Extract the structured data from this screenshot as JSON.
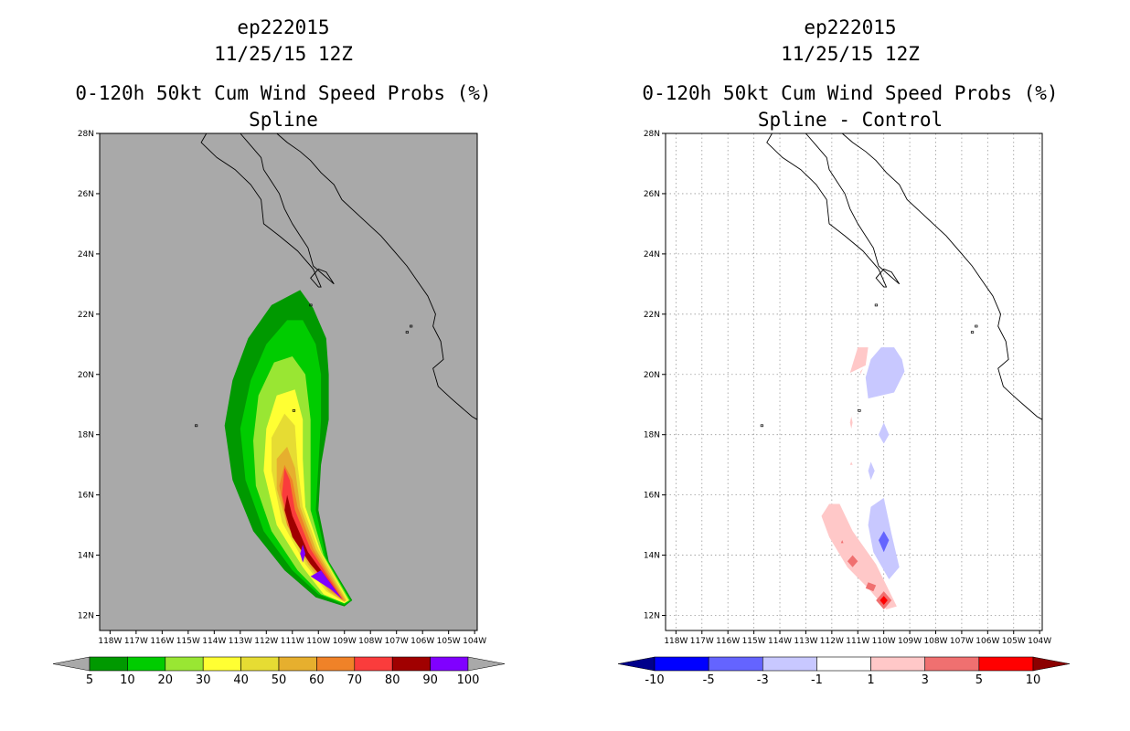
{
  "panels": [
    {
      "id": "left",
      "title_line1": "ep222015",
      "title_line2": "11/25/15 12Z",
      "title_line3": "0-120h 50kt Cum Wind Speed Probs (%)",
      "title_line4": "Spline",
      "background": "#a9a9a9"
    },
    {
      "id": "right",
      "title_line1": "ep222015",
      "title_line2": "11/25/15 12Z",
      "title_line3": "0-120h 50kt Cum Wind Speed Probs (%)",
      "title_line4": "Spline - Control",
      "background": "#ffffff"
    }
  ],
  "chart_data": [
    {
      "type": "heatmap",
      "panel": "left",
      "title": "0-120h 50kt Cum Wind Speed Probs (%) Spline",
      "x_ticks": [
        "118W",
        "117W",
        "116W",
        "115W",
        "114W",
        "113W",
        "112W",
        "111W",
        "110W",
        "109W",
        "108W",
        "107W",
        "106W",
        "105W",
        "104W"
      ],
      "y_ticks": [
        "12N",
        "14N",
        "16N",
        "18N",
        "20N",
        "22N",
        "24N",
        "26N",
        "28N"
      ],
      "xlim_lon": [
        -118.4,
        -103.9
      ],
      "ylim_lat": [
        11.5,
        28
      ],
      "grid": false,
      "colorbar": {
        "labels": [
          "5",
          "10",
          "20",
          "30",
          "40",
          "50",
          "60",
          "70",
          "80",
          "90",
          "100"
        ],
        "colors": [
          "#009900",
          "#00cc00",
          "#99e633",
          "#ffff33",
          "#e6dc33",
          "#e6af2e",
          "#f08228",
          "#fa3c3c",
          "#a00000",
          "#8000ff"
        ],
        "extend_color": "#a9a9a9"
      },
      "contours": [
        {
          "level": 5,
          "color": "#009900",
          "points": [
            [
              -109.0,
              12.3
            ],
            [
              -108.7,
              12.5
            ],
            [
              -109.6,
              13.8
            ],
            [
              -110.0,
              15.5
            ],
            [
              -109.9,
              17.0
            ],
            [
              -109.6,
              18.5
            ],
            [
              -109.6,
              20.0
            ],
            [
              -109.7,
              21.2
            ],
            [
              -110.2,
              22.2
            ],
            [
              -110.7,
              22.8
            ],
            [
              -111.8,
              22.3
            ],
            [
              -112.7,
              21.2
            ],
            [
              -113.3,
              19.8
            ],
            [
              -113.6,
              18.3
            ],
            [
              -113.3,
              16.5
            ],
            [
              -112.5,
              14.8
            ],
            [
              -111.3,
              13.5
            ],
            [
              -110.1,
              12.6
            ]
          ]
        },
        {
          "level": 10,
          "color": "#00cc00",
          "points": [
            [
              -109.0,
              12.35
            ],
            [
              -108.75,
              12.5
            ],
            [
              -109.7,
              13.9
            ],
            [
              -110.1,
              15.5
            ],
            [
              -110.0,
              17.0
            ],
            [
              -109.9,
              18.5
            ],
            [
              -109.9,
              20.0
            ],
            [
              -110.1,
              21.0
            ],
            [
              -110.6,
              21.8
            ],
            [
              -111.2,
              21.8
            ],
            [
              -112.0,
              21.0
            ],
            [
              -112.6,
              19.8
            ],
            [
              -113.0,
              18.2
            ],
            [
              -112.8,
              16.5
            ],
            [
              -112.1,
              14.8
            ],
            [
              -111.0,
              13.5
            ],
            [
              -110.0,
              12.7
            ]
          ]
        },
        {
          "level": 20,
          "color": "#99e633",
          "points": [
            [
              -109.0,
              12.4
            ],
            [
              -108.8,
              12.5
            ],
            [
              -109.8,
              14.0
            ],
            [
              -110.3,
              15.5
            ],
            [
              -110.3,
              17.0
            ],
            [
              -110.3,
              18.5
            ],
            [
              -110.5,
              20.0
            ],
            [
              -111.0,
              20.6
            ],
            [
              -111.7,
              20.4
            ],
            [
              -112.3,
              19.3
            ],
            [
              -112.5,
              17.8
            ],
            [
              -112.4,
              16.3
            ],
            [
              -111.8,
              14.8
            ],
            [
              -110.8,
              13.5
            ],
            [
              -109.9,
              12.7
            ]
          ]
        },
        {
          "level": 30,
          "color": "#ffff33",
          "points": [
            [
              -109.0,
              12.4
            ],
            [
              -108.85,
              12.5
            ],
            [
              -109.9,
              14.1
            ],
            [
              -110.5,
              15.6
            ],
            [
              -110.6,
              17.2
            ],
            [
              -110.6,
              18.5
            ],
            [
              -110.9,
              19.5
            ],
            [
              -111.6,
              19.3
            ],
            [
              -112.0,
              18.2
            ],
            [
              -112.1,
              16.8
            ],
            [
              -111.6,
              15.0
            ],
            [
              -110.6,
              13.6
            ],
            [
              -109.8,
              12.7
            ]
          ]
        },
        {
          "level": 40,
          "color": "#e6dc33",
          "points": [
            [
              -109.0,
              12.45
            ],
            [
              -108.9,
              12.5
            ],
            [
              -110.0,
              14.2
            ],
            [
              -110.6,
              15.6
            ],
            [
              -110.8,
              17.0
            ],
            [
              -110.9,
              18.3
            ],
            [
              -111.3,
              18.7
            ],
            [
              -111.8,
              17.9
            ],
            [
              -111.8,
              16.8
            ],
            [
              -111.4,
              15.1
            ],
            [
              -110.5,
              13.7
            ],
            [
              -109.7,
              12.8
            ]
          ]
        },
        {
          "level": 50,
          "color": "#e6af2e",
          "points": [
            [
              -109.0,
              12.45
            ],
            [
              -108.95,
              12.5
            ],
            [
              -110.1,
              14.2
            ],
            [
              -110.7,
              15.6
            ],
            [
              -110.9,
              16.9
            ],
            [
              -111.2,
              17.6
            ],
            [
              -111.6,
              17.2
            ],
            [
              -111.6,
              16.2
            ],
            [
              -111.2,
              15.0
            ],
            [
              -110.4,
              13.7
            ],
            [
              -109.6,
              12.8
            ]
          ]
        },
        {
          "level": 60,
          "color": "#f08228",
          "points": [
            [
              -109.0,
              12.5
            ],
            [
              -110.2,
              14.2
            ],
            [
              -110.8,
              15.6
            ],
            [
              -111.0,
              16.5
            ],
            [
              -111.3,
              17.0
            ],
            [
              -111.5,
              16.3
            ],
            [
              -111.2,
              15.0
            ],
            [
              -110.4,
              13.8
            ],
            [
              -109.5,
              12.8
            ]
          ]
        },
        {
          "level": 70,
          "color": "#fa3c3c",
          "points": [
            [
              -109.05,
              12.5
            ],
            [
              -110.3,
              14.2
            ],
            [
              -110.9,
              15.5
            ],
            [
              -111.1,
              16.5
            ],
            [
              -111.3,
              16.9
            ],
            [
              -111.4,
              16.0
            ],
            [
              -111.1,
              14.9
            ],
            [
              -110.3,
              13.8
            ],
            [
              -109.5,
              12.85
            ]
          ]
        },
        {
          "level": 80,
          "color": "#a00000",
          "points": [
            [
              -109.1,
              12.55
            ],
            [
              -110.4,
              14.1
            ],
            [
              -111.0,
              15.3
            ],
            [
              -111.2,
              16.0
            ],
            [
              -111.3,
              15.5
            ],
            [
              -111.0,
              14.6
            ],
            [
              -110.3,
              13.7
            ],
            [
              -109.5,
              12.9
            ]
          ]
        },
        {
          "level": 90,
          "color": "#8000ff",
          "points": [
            [
              -109.1,
              12.55
            ],
            [
              -109.9,
              13.5
            ],
            [
              -110.3,
              13.3
            ],
            [
              -109.5,
              12.85
            ]
          ]
        },
        {
          "level": 90,
          "color": "#8000ff",
          "points": [
            [
              -110.6,
              14.35
            ],
            [
              -110.5,
              14.05
            ],
            [
              -110.6,
              13.75
            ],
            [
              -110.7,
              14.05
            ]
          ]
        }
      ]
    },
    {
      "type": "heatmap",
      "panel": "right",
      "title": "0-120h 50kt Cum Wind Speed Probs (%) Spline - Control",
      "x_ticks": [
        "118W",
        "117W",
        "116W",
        "115W",
        "114W",
        "113W",
        "112W",
        "111W",
        "110W",
        "109W",
        "108W",
        "107W",
        "106W",
        "105W",
        "104W"
      ],
      "y_ticks": [
        "12N",
        "14N",
        "16N",
        "18N",
        "20N",
        "22N",
        "24N",
        "26N",
        "28N"
      ],
      "xlim_lon": [
        -118.4,
        -103.9
      ],
      "ylim_lat": [
        11.5,
        28
      ],
      "grid": true,
      "colorbar": {
        "labels": [
          "-10",
          "-5",
          "-3",
          "-1",
          "1",
          "3",
          "5",
          "10"
        ],
        "colors": [
          "#0000ff",
          "#6464ff",
          "#c8c8ff",
          "#ffffff",
          "#ffc8c8",
          "#f07070",
          "#ff0000"
        ],
        "extend_low_color": "#00008b",
        "extend_high_color": "#8b0000"
      },
      "contours": [
        {
          "level": 1,
          "color": "#ffc8c8",
          "points": [
            [
              -111.3,
              20.05
            ],
            [
              -111.0,
              20.9
            ],
            [
              -110.6,
              20.9
            ],
            [
              -110.7,
              20.3
            ]
          ]
        },
        {
          "level": 1,
          "color": "#ffc8c8",
          "points": [
            [
              -110.9,
              20.1
            ],
            [
              -110.8,
              20.2
            ],
            [
              -110.9,
              20.0
            ]
          ]
        },
        {
          "level": 1,
          "color": "#ffc8c8",
          "points": [
            [
              -111.3,
              18.4
            ],
            [
              -111.25,
              18.6
            ],
            [
              -111.2,
              18.4
            ],
            [
              -111.25,
              18.2
            ]
          ]
        },
        {
          "level": 1,
          "color": "#ffc8c8",
          "points": [
            [
              -111.3,
              17.0
            ],
            [
              -111.25,
              17.1
            ],
            [
              -111.2,
              17.0
            ]
          ]
        },
        {
          "level": 1,
          "color": "#ffc8c8",
          "points": [
            [
              -112.1,
              15.7
            ],
            [
              -111.7,
              15.7
            ],
            [
              -111.2,
              14.8
            ],
            [
              -110.3,
              13.7
            ],
            [
              -109.5,
              12.3
            ],
            [
              -109.9,
              12.2
            ],
            [
              -110.6,
              12.9
            ],
            [
              -111.4,
              13.6
            ],
            [
              -112.1,
              14.6
            ],
            [
              -112.4,
              15.3
            ]
          ]
        },
        {
          "level": 3,
          "color": "#f07070",
          "points": [
            [
              -111.2,
              14.0
            ],
            [
              -111.0,
              13.8
            ],
            [
              -111.2,
              13.6
            ],
            [
              -111.4,
              13.8
            ]
          ]
        },
        {
          "level": 3,
          "color": "#f07070",
          "points": [
            [
              -110.6,
              13.1
            ],
            [
              -110.3,
              13.0
            ],
            [
              -110.4,
              12.8
            ],
            [
              -110.7,
              12.9
            ]
          ]
        },
        {
          "level": 3,
          "color": "#f07070",
          "points": [
            [
              -111.6,
              14.5
            ],
            [
              -111.55,
              14.4
            ],
            [
              -111.65,
              14.4
            ]
          ]
        },
        {
          "level": 3,
          "color": "#f07070",
          "points": [
            [
              -110.0,
              12.2
            ],
            [
              -109.7,
              12.5
            ],
            [
              -110.0,
              12.8
            ],
            [
              -110.3,
              12.5
            ]
          ]
        },
        {
          "level": 5,
          "color": "#ff0000",
          "points": [
            [
              -110.0,
              12.35
            ],
            [
              -109.85,
              12.5
            ],
            [
              -110.0,
              12.65
            ],
            [
              -110.15,
              12.5
            ]
          ]
        },
        {
          "level": -1,
          "color": "#c8c8ff",
          "points": [
            [
              -110.6,
              19.2
            ],
            [
              -109.6,
              19.4
            ],
            [
              -109.2,
              20.1
            ],
            [
              -109.3,
              20.5
            ],
            [
              -109.6,
              20.9
            ],
            [
              -110.1,
              20.9
            ],
            [
              -110.5,
              20.5
            ],
            [
              -110.7,
              19.9
            ]
          ]
        },
        {
          "level": -1,
          "color": "#c8c8ff",
          "points": [
            [
              -110.0,
              17.7
            ],
            [
              -109.8,
              18.0
            ],
            [
              -110.0,
              18.4
            ],
            [
              -110.2,
              18.0
            ]
          ]
        },
        {
          "level": -1,
          "color": "#c8c8ff",
          "points": [
            [
              -110.5,
              16.5
            ],
            [
              -110.35,
              16.8
            ],
            [
              -110.5,
              17.1
            ],
            [
              -110.6,
              16.8
            ]
          ]
        },
        {
          "level": -1,
          "color": "#c8c8ff",
          "points": [
            [
              -110.5,
              15.6
            ],
            [
              -110.0,
              15.9
            ],
            [
              -109.7,
              14.7
            ],
            [
              -109.4,
              13.6
            ],
            [
              -109.8,
              13.2
            ],
            [
              -110.4,
              14.1
            ],
            [
              -110.6,
              15.0
            ]
          ]
        },
        {
          "level": -3,
          "color": "#6464ff",
          "points": [
            [
              -110.0,
              14.1
            ],
            [
              -109.8,
              14.5
            ],
            [
              -110.0,
              14.8
            ],
            [
              -110.2,
              14.5
            ]
          ]
        }
      ]
    }
  ]
}
